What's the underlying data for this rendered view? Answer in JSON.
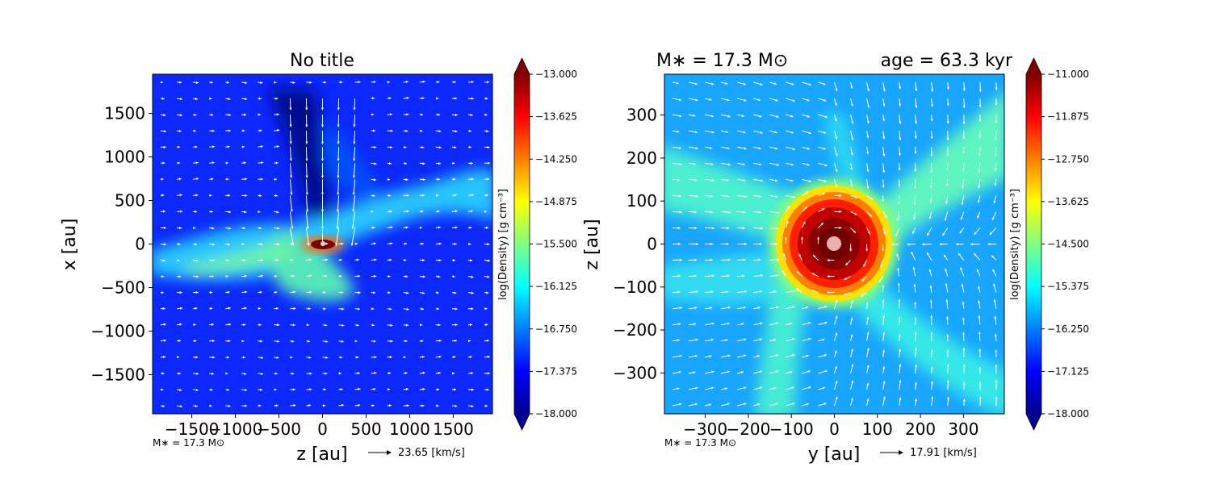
{
  "chart_data": [
    {
      "type": "heatmap",
      "title": "No title",
      "xlabel": "z [au]",
      "ylabel": "x [au]",
      "xlim": [
        -1950,
        1950
      ],
      "ylim": [
        -1950,
        1950
      ],
      "x_ticks": [
        -1500,
        -1000,
        -500,
        0,
        500,
        1000,
        1500
      ],
      "x_tick_labels": [
        "−1500",
        "−1000",
        "−500",
        "0",
        "500",
        "1000",
        "1500"
      ],
      "y_ticks": [
        1500,
        1000,
        500,
        0,
        -500,
        -1000,
        -1500
      ],
      "y_tick_labels": [
        "1500",
        "1000",
        "500",
        "0",
        "−500",
        "−1000",
        "−1500"
      ],
      "colorbar": {
        "label": "log(Density) [g cm⁻³]",
        "min": -18.0,
        "max": -13.0,
        "colormap": "jet",
        "ticks": [
          -13.0,
          -13.625,
          -14.25,
          -14.875,
          -15.5,
          -16.125,
          -16.75,
          -17.375,
          -18.0
        ],
        "tick_labels": [
          "−13.000",
          "−13.625",
          "−14.250",
          "−14.875",
          "−15.500",
          "−16.125",
          "−16.750",
          "−17.375",
          "−18.000"
        ]
      },
      "footer_note": "M∗ = 17.3 M⊙",
      "vector_key": "23.65 [km/s]",
      "features": {
        "background_level": -17.4,
        "filament_level": -15.9,
        "core_level": -13.0,
        "sink_color": "#d8d8d8"
      }
    },
    {
      "type": "heatmap",
      "title": "",
      "title_left": "M∗ = 17.3 M⊙",
      "title_right": "age = 63.3 kyr",
      "xlabel": "y [au]",
      "ylabel": "z [au]",
      "xlim": [
        -395,
        395
      ],
      "ylim": [
        -395,
        395
      ],
      "x_ticks": [
        -300,
        -200,
        -100,
        0,
        100,
        200,
        300
      ],
      "x_tick_labels": [
        "−300",
        "−200",
        "−100",
        "0",
        "100",
        "200",
        "300"
      ],
      "y_ticks": [
        300,
        200,
        100,
        0,
        -100,
        -200,
        -300
      ],
      "y_tick_labels": [
        "300",
        "200",
        "100",
        "0",
        "−100",
        "−200",
        "−300"
      ],
      "colorbar": {
        "label": "log(Density) [g cm⁻³]",
        "min": -18.0,
        "max": -11.0,
        "colormap": "jet",
        "ticks": [
          -11.0,
          -11.875,
          -12.75,
          -13.625,
          -14.5,
          -15.375,
          -16.25,
          -17.125,
          -18.0
        ],
        "tick_labels": [
          "−11.000",
          "−11.875",
          "−12.750",
          "−13.625",
          "−14.500",
          "−15.375",
          "−16.250",
          "−17.125",
          "−18.000"
        ]
      },
      "footer_note": "M∗ = 17.3 M⊙",
      "vector_key": "17.91 [km/s]",
      "features": {
        "background_level": -15.8,
        "filament_level": -15.0,
        "core_radius_au": 135,
        "core_level": -11.3,
        "sink_color": "#e8b0b0"
      }
    }
  ]
}
